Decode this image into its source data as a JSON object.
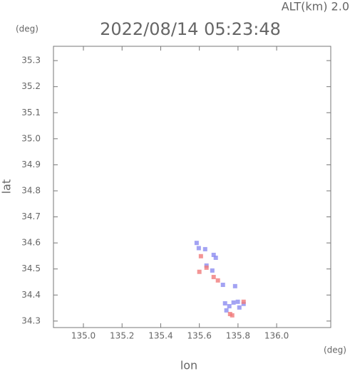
{
  "chart_data": {
    "type": "scatter",
    "title": "2022/08/14 05:23:48",
    "annotation": "ALT(km) 2.0",
    "y_unit": "(deg)",
    "x_unit": "(deg)",
    "xlabel": "lon",
    "ylabel": "lat",
    "xlim": [
      134.845,
      136.28
    ],
    "ylim": [
      34.275,
      35.355
    ],
    "xticks": [
      {
        "value": 135,
        "label": "135.0"
      },
      135.2,
      135.4,
      135.6,
      135.8,
      {
        "value": 136,
        "label": "136.0"
      }
    ],
    "yticks": [
      34.3,
      34.4,
      34.5,
      34.6,
      34.7,
      34.8,
      34.9,
      {
        "value": 35,
        "label": "35.0"
      },
      35.1,
      35.2,
      35.3
    ],
    "series": [
      {
        "color": "#8c8cf0",
        "x": [
          135.586,
          135.597,
          135.63,
          135.674,
          135.685,
          135.637,
          135.667,
          135.722,
          135.785,
          135.733,
          135.755,
          135.777,
          135.799,
          135.74,
          135.807,
          135.829
        ],
        "y": [
          34.6,
          34.58,
          34.576,
          34.554,
          34.543,
          34.513,
          34.494,
          34.439,
          34.434,
          34.368,
          34.357,
          34.371,
          34.374,
          34.341,
          34.352,
          34.366
        ]
      },
      {
        "color": "#f07a7a",
        "x": [
          135.608,
          135.6,
          135.674,
          135.696,
          135.637,
          135.829,
          135.759,
          135.77
        ],
        "y": [
          34.549,
          34.489,
          34.469,
          34.456,
          34.505,
          34.374,
          34.327,
          34.322
        ]
      }
    ]
  }
}
